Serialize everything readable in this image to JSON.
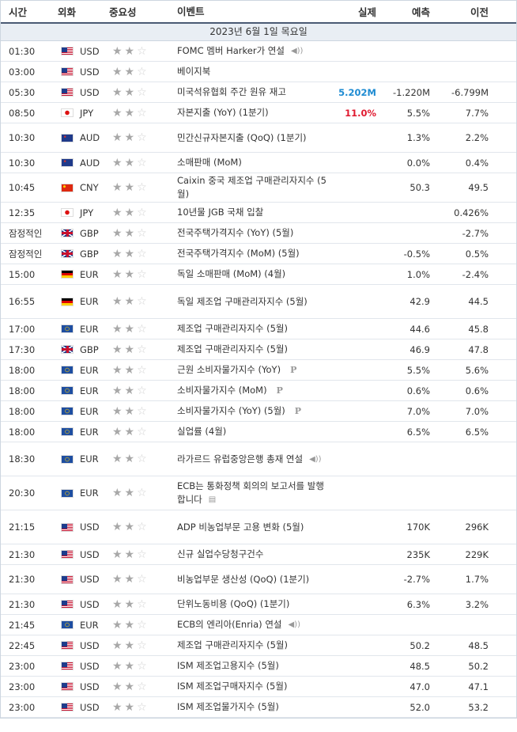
{
  "columns": {
    "time": "시간",
    "currency": "외화",
    "importance": "중요성",
    "event": "이벤트",
    "actual": "실제",
    "forecast": "예측",
    "previous": "이전"
  },
  "date_header": "2023년 6월 1일 목요일",
  "colors": {
    "actual_positive": "#1e8bd2",
    "actual_negative": "#e0192f",
    "header_border": "#4a5a74"
  },
  "rows": [
    {
      "time": "01:30",
      "flag": "us",
      "cur": "USD",
      "event": "FOMC 멤버 Harker가 연설",
      "icon": "speaker-icon",
      "actual": "",
      "actual_color": "",
      "forecast": "",
      "previous": ""
    },
    {
      "time": "03:00",
      "flag": "us",
      "cur": "USD",
      "event": "베이지북",
      "icon": "",
      "actual": "",
      "actual_color": "",
      "forecast": "",
      "previous": ""
    },
    {
      "time": "05:30",
      "flag": "us",
      "cur": "USD",
      "event": "미국석유협회 주간 원유 재고",
      "icon": "",
      "actual": "5.202M",
      "actual_color": "blue",
      "forecast": "-1.220M",
      "previous": "-6.799M"
    },
    {
      "time": "08:50",
      "flag": "jp",
      "cur": "JPY",
      "event": "자본지출 (YoY) (1분기)",
      "icon": "",
      "actual": "11.0%",
      "actual_color": "red",
      "forecast": "5.5%",
      "previous": "7.7%"
    },
    {
      "time": "10:30",
      "flag": "au",
      "cur": "AUD",
      "event": "민간신규자본지출 (QoQ) (1분기)",
      "icon": "",
      "actual": "",
      "actual_color": "",
      "forecast": "1.3%",
      "previous": "2.2%"
    },
    {
      "time": "10:30",
      "flag": "au",
      "cur": "AUD",
      "event": "소매판매 (MoM)",
      "icon": "",
      "actual": "",
      "actual_color": "",
      "forecast": "0.0%",
      "previous": "0.4%"
    },
    {
      "time": "10:45",
      "flag": "cn",
      "cur": "CNY",
      "event": "Caixin 중국 제조업 구매관리자지수 (5월)",
      "icon": "",
      "actual": "",
      "actual_color": "",
      "forecast": "50.3",
      "previous": "49.5"
    },
    {
      "time": "12:35",
      "flag": "jp",
      "cur": "JPY",
      "event": "10년물 JGB 국채 입찰",
      "icon": "",
      "actual": "",
      "actual_color": "",
      "forecast": "",
      "previous": "0.426%"
    },
    {
      "time": "잠정적인",
      "flag": "gb",
      "cur": "GBP",
      "event": "전국주택가격지수 (YoY) (5월)",
      "icon": "",
      "actual": "",
      "actual_color": "",
      "forecast": "",
      "previous": "-2.7%"
    },
    {
      "time": "잠정적인",
      "flag": "gb",
      "cur": "GBP",
      "event": "전국주택가격지수 (MoM) (5월)",
      "icon": "",
      "actual": "",
      "actual_color": "",
      "forecast": "-0.5%",
      "previous": "0.5%"
    },
    {
      "time": "15:00",
      "flag": "de",
      "cur": "EUR",
      "event": "독일 소매판매 (MoM) (4월)",
      "icon": "",
      "actual": "",
      "actual_color": "",
      "forecast": "1.0%",
      "previous": "-2.4%"
    },
    {
      "time": "16:55",
      "flag": "de",
      "cur": "EUR",
      "event": "독일 제조업 구매관리자지수 (5월)",
      "icon": "",
      "actual": "",
      "actual_color": "",
      "forecast": "42.9",
      "previous": "44.5"
    },
    {
      "time": "17:00",
      "flag": "eu",
      "cur": "EUR",
      "event": "제조업 구매관리자지수 (5월)",
      "icon": "",
      "actual": "",
      "actual_color": "",
      "forecast": "44.6",
      "previous": "45.8"
    },
    {
      "time": "17:30",
      "flag": "gb",
      "cur": "GBP",
      "event": "제조업 구매관리자지수 (5월)",
      "icon": "",
      "actual": "",
      "actual_color": "",
      "forecast": "46.9",
      "previous": "47.8"
    },
    {
      "time": "18:00",
      "flag": "eu",
      "cur": "EUR",
      "event": "근원 소비자물가지수 (YoY)",
      "icon": "preliminary-badge",
      "actual": "",
      "actual_color": "",
      "forecast": "5.5%",
      "previous": "5.6%"
    },
    {
      "time": "18:00",
      "flag": "eu",
      "cur": "EUR",
      "event": "소비자물가지수 (MoM)",
      "icon": "preliminary-badge",
      "actual": "",
      "actual_color": "",
      "forecast": "0.6%",
      "previous": "0.6%"
    },
    {
      "time": "18:00",
      "flag": "eu",
      "cur": "EUR",
      "event": "소비자물가지수 (YoY) (5월)",
      "icon": "preliminary-badge",
      "actual": "",
      "actual_color": "",
      "forecast": "7.0%",
      "previous": "7.0%"
    },
    {
      "time": "18:00",
      "flag": "eu",
      "cur": "EUR",
      "event": "실업률 (4월)",
      "icon": "",
      "actual": "",
      "actual_color": "",
      "forecast": "6.5%",
      "previous": "6.5%"
    },
    {
      "time": "18:30",
      "flag": "eu",
      "cur": "EUR",
      "event": "라가르드 유럽중앙은행 총재 연설",
      "icon": "speaker-icon",
      "actual": "",
      "actual_color": "",
      "forecast": "",
      "previous": ""
    },
    {
      "time": "20:30",
      "flag": "eu",
      "cur": "EUR",
      "event": "ECB는 통화정책 회의의 보고서를 발행합니다",
      "icon": "report-icon",
      "actual": "",
      "actual_color": "",
      "forecast": "",
      "previous": ""
    },
    {
      "time": "21:15",
      "flag": "us",
      "cur": "USD",
      "event": "ADP 비농업부문 고용 변화 (5월)",
      "icon": "",
      "actual": "",
      "actual_color": "",
      "forecast": "170K",
      "previous": "296K"
    },
    {
      "time": "21:30",
      "flag": "us",
      "cur": "USD",
      "event": "신규 실업수당청구건수",
      "icon": "",
      "actual": "",
      "actual_color": "",
      "forecast": "235K",
      "previous": "229K"
    },
    {
      "time": "21:30",
      "flag": "us",
      "cur": "USD",
      "event": "비농업부문 생산성 (QoQ) (1분기)",
      "icon": "",
      "actual": "",
      "actual_color": "",
      "forecast": "-2.7%",
      "previous": "1.7%"
    },
    {
      "time": "21:30",
      "flag": "us",
      "cur": "USD",
      "event": "단위노동비용 (QoQ) (1분기)",
      "icon": "",
      "actual": "",
      "actual_color": "",
      "forecast": "6.3%",
      "previous": "3.2%"
    },
    {
      "time": "21:45",
      "flag": "eu",
      "cur": "EUR",
      "event": "ECB의 엔리아(Enria) 연설",
      "icon": "speaker-icon",
      "actual": "",
      "actual_color": "",
      "forecast": "",
      "previous": ""
    },
    {
      "time": "22:45",
      "flag": "us",
      "cur": "USD",
      "event": "제조업 구매관리자지수 (5월)",
      "icon": "",
      "actual": "",
      "actual_color": "",
      "forecast": "50.2",
      "previous": "48.5"
    },
    {
      "time": "23:00",
      "flag": "us",
      "cur": "USD",
      "event": "ISM 제조업고용지수 (5월)",
      "icon": "",
      "actual": "",
      "actual_color": "",
      "forecast": "48.5",
      "previous": "50.2"
    },
    {
      "time": "23:00",
      "flag": "us",
      "cur": "USD",
      "event": "ISM 제조업구매자지수 (5월)",
      "icon": "",
      "actual": "",
      "actual_color": "",
      "forecast": "47.0",
      "previous": "47.1"
    },
    {
      "time": "23:00",
      "flag": "us",
      "cur": "USD",
      "event": "ISM 제조업물가지수 (5월)",
      "icon": "",
      "actual": "",
      "actual_color": "",
      "forecast": "52.0",
      "previous": "53.2"
    }
  ]
}
